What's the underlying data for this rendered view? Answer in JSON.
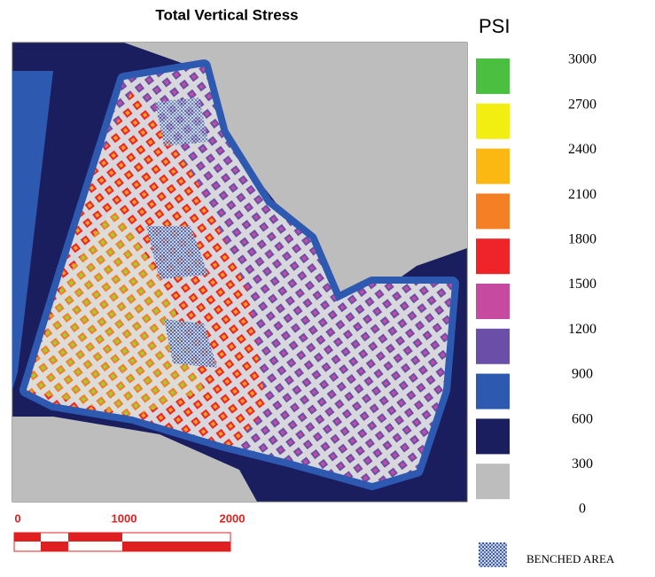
{
  "title": "Total Vertical Stress",
  "legend": {
    "unit": "PSI",
    "labels": [
      3000,
      2700,
      2400,
      2100,
      1800,
      1500,
      1200,
      900,
      600,
      300,
      0
    ],
    "colors": [
      "#4bbf3f",
      "#f2ee12",
      "#fbb812",
      "#f47f25",
      "#ee2428",
      "#c64ba0",
      "#6b4ea8",
      "#2e59b0",
      "#1b1e5e",
      "#bdbdbd"
    ]
  },
  "scale_bar": {
    "labels": [
      0,
      1000,
      2000
    ]
  },
  "benched_area": {
    "label": "BENCHED AREA"
  }
}
